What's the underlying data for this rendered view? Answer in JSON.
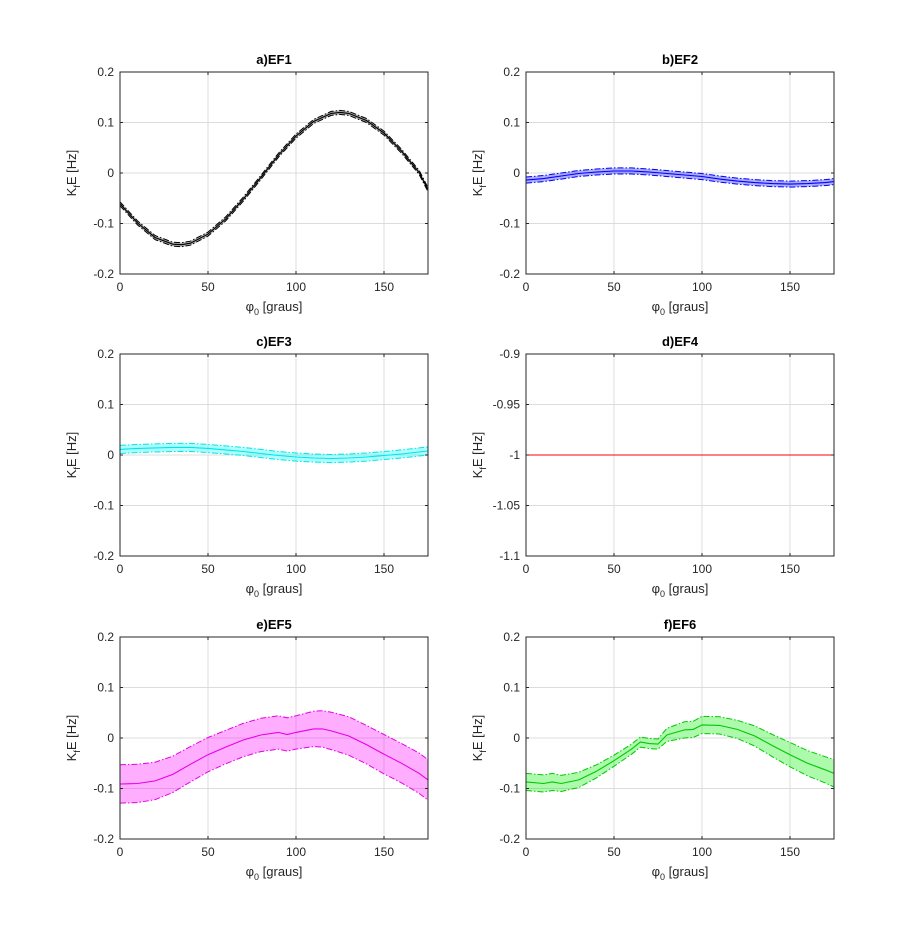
{
  "chart_data": [
    {
      "type": "line",
      "title": "a)EF1",
      "xlabel": "graus",
      "ylabel": "[Hz]",
      "xlim": [
        0,
        175
      ],
      "ylim": [
        -0.2,
        0.2
      ],
      "xticks": [
        0,
        50,
        100,
        150
      ],
      "xticklabels": [
        "0",
        "50",
        "100",
        "150"
      ],
      "yticks": [
        -0.2,
        -0.1,
        0,
        0.1,
        0.2
      ],
      "yticklabels": [
        "-0.2",
        "-0.1",
        "0",
        "0.1",
        "0.2"
      ],
      "grid": true,
      "color": "#000000",
      "band_fill": "#000000",
      "x": [
        0,
        10,
        20,
        30,
        35,
        40,
        50,
        60,
        70,
        80,
        90,
        100,
        110,
        120,
        125,
        130,
        140,
        150,
        160,
        170,
        175
      ],
      "mean": [
        -0.061,
        -0.099,
        -0.128,
        -0.141,
        -0.142,
        -0.139,
        -0.121,
        -0.091,
        -0.052,
        -0.009,
        0.035,
        0.073,
        0.102,
        0.118,
        0.12,
        0.118,
        0.104,
        0.079,
        0.043,
        0.001,
        -0.033
      ],
      "halfwidth": [
        0.004,
        0.004,
        0.004,
        0.004,
        0.004,
        0.004,
        0.004,
        0.004,
        0.004,
        0.004,
        0.004,
        0.004,
        0.004,
        0.004,
        0.004,
        0.004,
        0.004,
        0.004,
        0.004,
        0.004,
        0.004
      ]
    },
    {
      "type": "line",
      "title": "b)EF2",
      "xlabel": "graus",
      "ylabel": "[Hz]",
      "xlim": [
        0,
        175
      ],
      "ylim": [
        -0.2,
        0.2
      ],
      "xticks": [
        0,
        50,
        100,
        150
      ],
      "xticklabels": [
        "0",
        "50",
        "100",
        "150"
      ],
      "yticks": [
        -0.2,
        -0.1,
        0,
        0.1,
        0.2
      ],
      "yticklabels": [
        "-0.2",
        "-0.1",
        "0",
        "0.1",
        "0.2"
      ],
      "grid": true,
      "color": "#0000ff",
      "band_fill": "#0000ff",
      "x": [
        0,
        10,
        20,
        30,
        40,
        50,
        60,
        70,
        80,
        90,
        100,
        110,
        120,
        130,
        140,
        150,
        160,
        170,
        175
      ],
      "mean": [
        -0.014,
        -0.011,
        -0.006,
        -0.001,
        0.002,
        0.004,
        0.004,
        0.002,
        -0.001,
        -0.004,
        -0.007,
        -0.012,
        -0.016,
        -0.019,
        -0.021,
        -0.022,
        -0.021,
        -0.019,
        -0.017
      ],
      "halfwidth": [
        0.006,
        0.006,
        0.006,
        0.006,
        0.006,
        0.006,
        0.006,
        0.006,
        0.006,
        0.006,
        0.006,
        0.006,
        0.006,
        0.006,
        0.006,
        0.006,
        0.006,
        0.006,
        0.006
      ]
    },
    {
      "type": "line",
      "title": "c)EF3",
      "xlabel": "graus",
      "ylabel": "[Hz]",
      "xlim": [
        0,
        175
      ],
      "ylim": [
        -0.2,
        0.2
      ],
      "xticks": [
        0,
        50,
        100,
        150
      ],
      "xticklabels": [
        "0",
        "50",
        "100",
        "150"
      ],
      "yticks": [
        -0.2,
        -0.1,
        0,
        0.1,
        0.2
      ],
      "yticklabels": [
        "-0.2",
        "-0.1",
        "0",
        "0.1",
        "0.2"
      ],
      "grid": true,
      "color": "#00e5e5",
      "band_fill": "#00ffff",
      "x": [
        0,
        10,
        20,
        30,
        40,
        50,
        60,
        70,
        80,
        90,
        100,
        110,
        120,
        130,
        140,
        150,
        160,
        170,
        175
      ],
      "mean": [
        0.011,
        0.013,
        0.014,
        0.015,
        0.015,
        0.013,
        0.01,
        0.007,
        0.003,
        -0.001,
        -0.004,
        -0.006,
        -0.007,
        -0.006,
        -0.004,
        -0.001,
        0.002,
        0.006,
        0.008
      ],
      "halfwidth": [
        0.008,
        0.008,
        0.008,
        0.008,
        0.008,
        0.008,
        0.008,
        0.008,
        0.008,
        0.008,
        0.008,
        0.008,
        0.008,
        0.008,
        0.008,
        0.008,
        0.008,
        0.008,
        0.008
      ]
    },
    {
      "type": "line",
      "title": "d)EF4",
      "xlabel": "graus",
      "ylabel": "[Hz]",
      "xlim": [
        0,
        175
      ],
      "ylim": [
        -1.1,
        -0.9
      ],
      "xticks": [
        0,
        50,
        100,
        150
      ],
      "xticklabels": [
        "0",
        "50",
        "100",
        "150"
      ],
      "yticks": [
        -1.1,
        -1.05,
        -1,
        -0.95,
        -0.9
      ],
      "yticklabels": [
        "-1.1",
        "-1.05",
        "-1",
        "-0.95",
        "-0.9"
      ],
      "grid": true,
      "color": "#ff0000",
      "band_fill": "#ff0000",
      "x": [
        0,
        175
      ],
      "mean": [
        -1.0,
        -1.0
      ],
      "halfwidth": [
        0.0,
        0.0
      ]
    },
    {
      "type": "line",
      "title": "e)EF5",
      "xlabel": "graus",
      "ylabel": "[Hz]",
      "xlim": [
        0,
        175
      ],
      "ylim": [
        -0.2,
        0.2
      ],
      "xticks": [
        0,
        50,
        100,
        150
      ],
      "xticklabels": [
        "0",
        "50",
        "100",
        "150"
      ],
      "yticks": [
        -0.2,
        -0.1,
        0,
        0.1,
        0.2
      ],
      "yticklabels": [
        "-0.2",
        "-0.1",
        "0",
        "0.1",
        "0.2"
      ],
      "grid": true,
      "color": "#e600e6",
      "band_fill": "#ff00ff",
      "x": [
        0,
        10,
        20,
        30,
        40,
        50,
        60,
        70,
        80,
        90,
        95,
        100,
        110,
        115,
        120,
        130,
        140,
        150,
        160,
        170,
        175
      ],
      "mean": [
        -0.091,
        -0.09,
        -0.085,
        -0.072,
        -0.052,
        -0.033,
        -0.018,
        -0.004,
        0.006,
        0.011,
        0.007,
        0.011,
        0.018,
        0.018,
        0.014,
        0.004,
        -0.013,
        -0.032,
        -0.05,
        -0.07,
        -0.083
      ],
      "halfwidth": [
        0.038,
        0.038,
        0.037,
        0.036,
        0.035,
        0.034,
        0.033,
        0.033,
        0.033,
        0.033,
        0.033,
        0.033,
        0.035,
        0.036,
        0.037,
        0.038,
        0.038,
        0.039,
        0.039,
        0.04,
        0.04
      ]
    },
    {
      "type": "line",
      "title": "f)EF6",
      "xlabel": "graus",
      "ylabel": "[Hz]",
      "xlim": [
        0,
        175
      ],
      "ylim": [
        -0.2,
        0.2
      ],
      "xticks": [
        0,
        50,
        100,
        150
      ],
      "xticklabels": [
        "0",
        "50",
        "100",
        "150"
      ],
      "yticks": [
        -0.2,
        -0.1,
        0,
        0.1,
        0.2
      ],
      "yticklabels": [
        "-0.2",
        "-0.1",
        "0",
        "0.1",
        "0.2"
      ],
      "grid": true,
      "color": "#00c800",
      "band_fill": "#00ee00",
      "x": [
        0,
        10,
        15,
        20,
        30,
        40,
        50,
        60,
        65,
        70,
        75,
        80,
        90,
        95,
        100,
        110,
        120,
        130,
        140,
        150,
        160,
        170,
        175
      ],
      "mean": [
        -0.087,
        -0.09,
        -0.087,
        -0.09,
        -0.083,
        -0.066,
        -0.045,
        -0.022,
        -0.008,
        -0.011,
        -0.012,
        0.006,
        0.016,
        0.017,
        0.026,
        0.025,
        0.017,
        0.004,
        -0.015,
        -0.033,
        -0.05,
        -0.063,
        -0.07
      ],
      "halfwidth": [
        0.017,
        0.017,
        0.017,
        0.016,
        0.015,
        0.013,
        0.011,
        0.01,
        0.01,
        0.01,
        0.01,
        0.013,
        0.016,
        0.016,
        0.017,
        0.017,
        0.018,
        0.02,
        0.022,
        0.024,
        0.025,
        0.026,
        0.027
      ]
    }
  ]
}
